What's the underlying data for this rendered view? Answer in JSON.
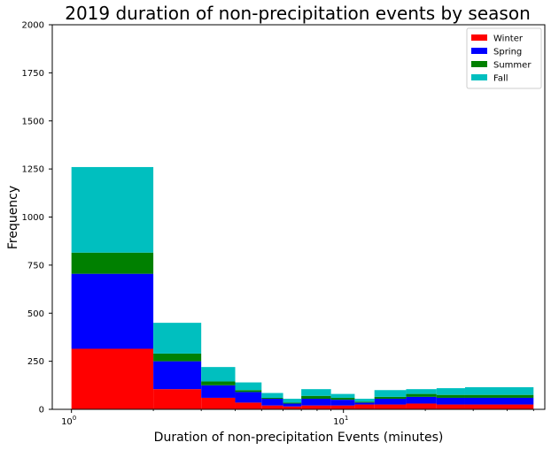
{
  "chart_data": {
    "type": "bar",
    "stacked": true,
    "title": "2019 duration of non-precipitation events by season",
    "xlabel": "Duration of non-precipitation Events (minutes)",
    "ylabel": "Frequency",
    "xscale": "log",
    "xlim": [
      0.85,
      55
    ],
    "ylim": [
      0,
      2000
    ],
    "yticks": [
      0,
      250,
      500,
      750,
      1000,
      1250,
      1500,
      1750,
      2000
    ],
    "xticks": [
      {
        "value": 1,
        "label": "10",
        "sup": "0"
      },
      {
        "value": 10,
        "label": "10",
        "sup": "1"
      }
    ],
    "grid": false,
    "legend_position": "top-right",
    "bin_edges": [
      1,
      2,
      3,
      4,
      5,
      6,
      7,
      9,
      11,
      13,
      17,
      22,
      28,
      50
    ],
    "series": [
      {
        "name": "Winter",
        "color": "#ff0000",
        "values": [
          315,
          105,
          60,
          35,
          20,
          15,
          20,
          20,
          25,
          25,
          30,
          25,
          25
        ]
      },
      {
        "name": "Spring",
        "color": "#0000ff",
        "values": [
          390,
          145,
          65,
          55,
          35,
          15,
          35,
          30,
          10,
          30,
          35,
          35,
          35
        ]
      },
      {
        "name": "Summer",
        "color": "#008000",
        "values": [
          110,
          40,
          20,
          10,
          5,
          5,
          15,
          10,
          5,
          10,
          15,
          15,
          15
        ]
      },
      {
        "name": "Fall",
        "color": "#00bfbf",
        "values": [
          445,
          160,
          75,
          40,
          25,
          20,
          35,
          20,
          15,
          35,
          25,
          35,
          40
        ]
      }
    ]
  }
}
